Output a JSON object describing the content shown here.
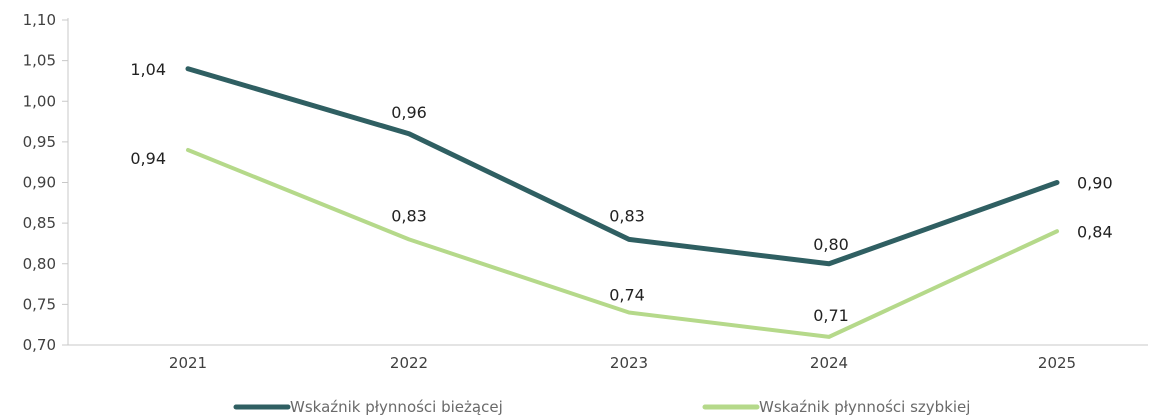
{
  "chart_data": {
    "type": "line",
    "categories": [
      "2021",
      "2022",
      "2023",
      "2024",
      "2025"
    ],
    "series": [
      {
        "name": "Wskaźnik płynności bieżącej",
        "values": [
          1.04,
          0.96,
          0.83,
          0.8,
          0.9
        ],
        "labels": [
          "1,04",
          "0,96",
          "0,83",
          "0,80",
          "0,90"
        ],
        "color": "#2f5f62"
      },
      {
        "name": "Wskaźnik płynności szybkiej",
        "values": [
          0.94,
          0.83,
          0.74,
          0.71,
          0.84
        ],
        "labels": [
          "0,94",
          "0,83",
          "0,74",
          "0,71",
          "0,84"
        ],
        "color": "#b5d98a"
      }
    ],
    "ylim": [
      0.7,
      1.1
    ],
    "yticks": [
      "0,70",
      "0,75",
      "0,80",
      "0,85",
      "0,90",
      "0,95",
      "1,00",
      "1,05",
      "1,10"
    ],
    "title": "",
    "xlabel": "",
    "ylabel": "",
    "grid": false,
    "legend_position": "bottom"
  }
}
